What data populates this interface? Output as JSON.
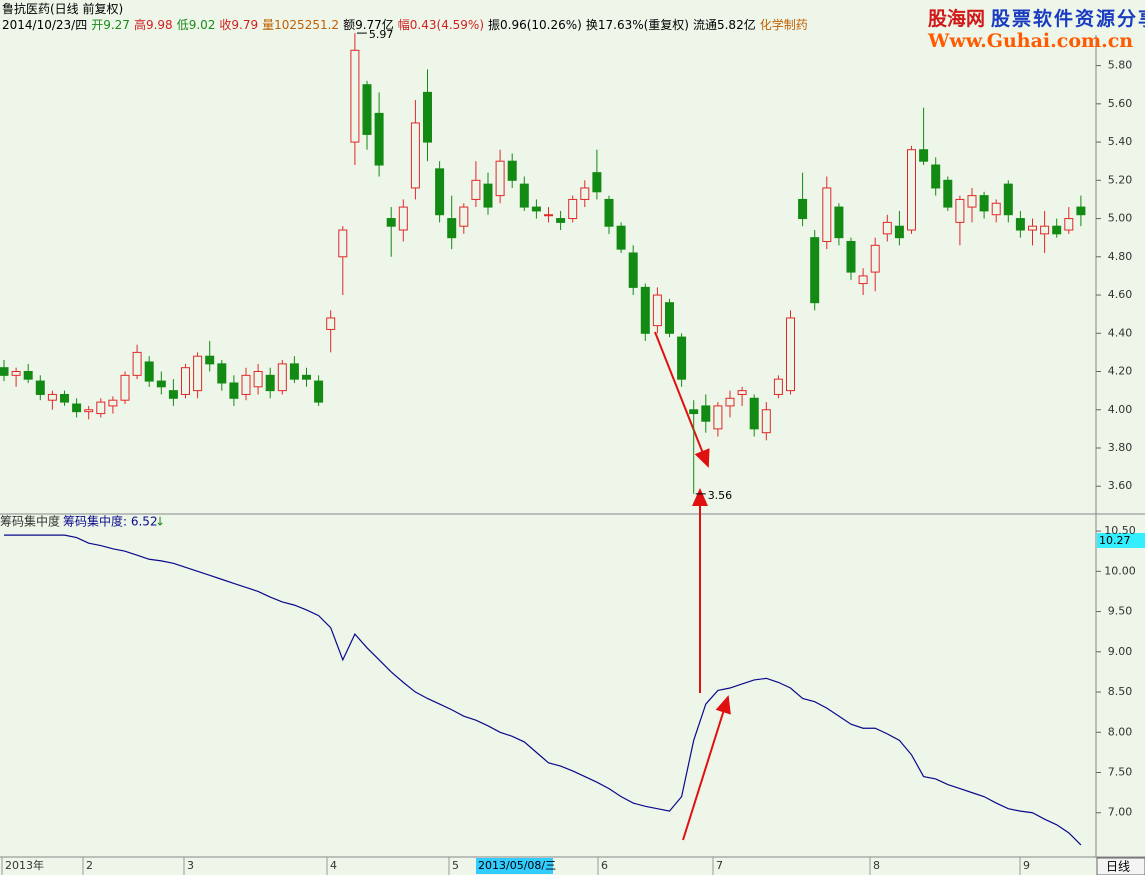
{
  "header": {
    "title": "鲁抗医药(日线 前复权)",
    "date": "2014/10/23/四",
    "open": "开9.27",
    "high": "高9.98",
    "low": "低9.02",
    "close": "收9.79",
    "volume": "量1025251.2",
    "amount": "额9.77亿",
    "change": "幅0.43(4.59%)",
    "amplitude": "振0.96(10.26%)",
    "turnover": "换17.63%(重复权)",
    "float": "流通5.82亿",
    "sector": "化学制药"
  },
  "logo": {
    "name": "股海网",
    "slogan": "股票软件资源分享",
    "url": "Www.Guhai.com.cn"
  },
  "x_axis": {
    "labels": [
      "2013年",
      "2",
      "3",
      "4",
      "5",
      "6",
      "7",
      "8",
      "9"
    ],
    "cursor_label": "2013/05/08/三",
    "period": "日线"
  },
  "chart_data": [
    {
      "type": "candlestick",
      "up_color": "#e02828",
      "down_color": "#138a13",
      "ylim": [
        3.46,
        5.96
      ],
      "yticks": [
        {
          "value": 3.6,
          "label": "3.60"
        },
        {
          "value": 3.8,
          "label": "3.80"
        },
        {
          "value": 4.0,
          "label": "4.00"
        },
        {
          "value": 4.2,
          "label": "4.20"
        },
        {
          "value": 4.4,
          "label": "4.40"
        },
        {
          "value": 4.6,
          "label": "4.60"
        },
        {
          "value": 4.8,
          "label": "4.80"
        },
        {
          "value": 5.0,
          "label": "5.00"
        },
        {
          "value": 5.2,
          "label": "5.20"
        },
        {
          "value": 5.4,
          "label": "5.40"
        },
        {
          "value": 5.6,
          "label": "5.60"
        },
        {
          "value": 5.8,
          "label": "5.80"
        }
      ],
      "annotations": [
        "5.97",
        "3.56"
      ],
      "ohlc": [
        [
          4.22,
          4.26,
          4.15,
          4.18
        ],
        [
          4.18,
          4.22,
          4.12,
          4.2
        ],
        [
          4.2,
          4.24,
          4.14,
          4.16
        ],
        [
          4.15,
          4.18,
          4.05,
          4.08
        ],
        [
          4.05,
          4.1,
          4.0,
          4.08
        ],
        [
          4.08,
          4.1,
          4.02,
          4.04
        ],
        [
          4.03,
          4.06,
          3.96,
          3.99
        ],
        [
          3.99,
          4.02,
          3.95,
          4.0
        ],
        [
          3.98,
          4.06,
          3.96,
          4.04
        ],
        [
          4.02,
          4.07,
          3.98,
          4.05
        ],
        [
          4.05,
          4.2,
          4.03,
          4.18
        ],
        [
          4.18,
          4.34,
          4.16,
          4.3
        ],
        [
          4.25,
          4.28,
          4.12,
          4.15
        ],
        [
          4.15,
          4.2,
          4.08,
          4.12
        ],
        [
          4.1,
          4.16,
          4.02,
          4.06
        ],
        [
          4.08,
          4.24,
          4.06,
          4.22
        ],
        [
          4.1,
          4.3,
          4.06,
          4.28
        ],
        [
          4.28,
          4.36,
          4.2,
          4.24
        ],
        [
          4.24,
          4.26,
          4.1,
          4.14
        ],
        [
          4.14,
          4.18,
          4.02,
          4.06
        ],
        [
          4.08,
          4.22,
          4.05,
          4.18
        ],
        [
          4.12,
          4.24,
          4.08,
          4.2
        ],
        [
          4.18,
          4.22,
          4.06,
          4.1
        ],
        [
          4.1,
          4.26,
          4.08,
          4.24
        ],
        [
          4.24,
          4.28,
          4.14,
          4.16
        ],
        [
          4.18,
          4.22,
          4.12,
          4.16
        ],
        [
          4.15,
          4.18,
          4.02,
          4.04
        ],
        [
          4.42,
          4.52,
          4.3,
          4.48
        ],
        [
          4.8,
          4.96,
          4.6,
          4.94
        ],
        [
          5.4,
          5.97,
          5.28,
          5.88
        ],
        [
          5.7,
          5.72,
          5.36,
          5.44
        ],
        [
          5.55,
          5.66,
          5.22,
          5.28
        ],
        [
          5.0,
          5.06,
          4.8,
          4.96
        ],
        [
          4.94,
          5.1,
          4.88,
          5.06
        ],
        [
          5.16,
          5.62,
          5.1,
          5.5
        ],
        [
          5.66,
          5.78,
          5.3,
          5.4
        ],
        [
          5.26,
          5.3,
          4.98,
          5.02
        ],
        [
          5.0,
          5.12,
          4.84,
          4.9
        ],
        [
          4.96,
          5.08,
          4.92,
          5.06
        ],
        [
          5.1,
          5.3,
          5.06,
          5.2
        ],
        [
          5.18,
          5.24,
          5.02,
          5.06
        ],
        [
          5.12,
          5.36,
          5.08,
          5.3
        ],
        [
          5.3,
          5.34,
          5.16,
          5.2
        ],
        [
          5.18,
          5.22,
          5.04,
          5.06
        ],
        [
          5.06,
          5.1,
          5.0,
          5.04
        ],
        [
          5.02,
          5.06,
          4.98,
          5.02
        ],
        [
          5.0,
          5.04,
          4.94,
          4.98
        ],
        [
          5.0,
          5.12,
          4.98,
          5.1
        ],
        [
          5.1,
          5.2,
          5.06,
          5.16
        ],
        [
          5.24,
          5.36,
          5.1,
          5.14
        ],
        [
          5.1,
          5.12,
          4.92,
          4.96
        ],
        [
          4.96,
          4.98,
          4.82,
          4.84
        ],
        [
          4.82,
          4.86,
          4.6,
          4.64
        ],
        [
          4.64,
          4.66,
          4.36,
          4.4
        ],
        [
          4.44,
          4.64,
          4.4,
          4.6
        ],
        [
          4.56,
          4.58,
          4.38,
          4.4
        ],
        [
          4.38,
          4.4,
          4.12,
          4.16
        ],
        [
          4.0,
          4.05,
          3.56,
          3.98
        ],
        [
          4.02,
          4.08,
          3.88,
          3.94
        ],
        [
          3.9,
          4.04,
          3.86,
          4.02
        ],
        [
          4.02,
          4.1,
          3.96,
          4.06
        ],
        [
          4.08,
          4.12,
          4.02,
          4.1
        ],
        [
          4.06,
          4.08,
          3.86,
          3.9
        ],
        [
          3.88,
          4.04,
          3.84,
          4.0
        ],
        [
          4.08,
          4.18,
          4.06,
          4.16
        ],
        [
          4.1,
          4.52,
          4.08,
          4.48
        ],
        [
          5.1,
          5.24,
          4.96,
          5.0
        ],
        [
          4.9,
          4.94,
          4.52,
          4.56
        ],
        [
          4.88,
          5.22,
          4.84,
          5.16
        ],
        [
          5.06,
          5.08,
          4.86,
          4.9
        ],
        [
          4.88,
          4.9,
          4.68,
          4.72
        ],
        [
          4.66,
          4.74,
          4.6,
          4.7
        ],
        [
          4.72,
          4.9,
          4.62,
          4.86
        ],
        [
          4.92,
          5.02,
          4.88,
          4.98
        ],
        [
          4.96,
          5.04,
          4.86,
          4.9
        ],
        [
          4.94,
          5.38,
          4.92,
          5.36
        ],
        [
          5.36,
          5.58,
          5.28,
          5.3
        ],
        [
          5.28,
          5.32,
          5.12,
          5.16
        ],
        [
          5.2,
          5.22,
          5.04,
          5.06
        ],
        [
          4.98,
          5.12,
          4.86,
          5.1
        ],
        [
          5.06,
          5.16,
          4.98,
          5.12
        ],
        [
          5.12,
          5.14,
          5.0,
          5.04
        ],
        [
          5.02,
          5.1,
          4.98,
          5.08
        ],
        [
          5.18,
          5.2,
          4.98,
          5.02
        ],
        [
          5.0,
          5.04,
          4.9,
          4.94
        ],
        [
          4.94,
          5.0,
          4.86,
          4.96
        ],
        [
          4.92,
          5.04,
          4.82,
          4.96
        ],
        [
          4.96,
          5.0,
          4.9,
          4.92
        ],
        [
          4.94,
          5.06,
          4.92,
          5.0
        ],
        [
          5.06,
          5.12,
          4.96,
          5.02
        ]
      ]
    },
    {
      "type": "line",
      "title": "筹码集中度",
      "legend": "筹码集中度: 6.52",
      "trend": "↓",
      "current_label": "10.27",
      "color": "#0a0a8a",
      "ylim": [
        6.45,
        10.7
      ],
      "yticks": [
        {
          "value": 7.0,
          "label": "7.00"
        },
        {
          "value": 7.5,
          "label": "7.50"
        },
        {
          "value": 8.0,
          "label": "8.00"
        },
        {
          "value": 8.5,
          "label": "8.50"
        },
        {
          "value": 9.0,
          "label": "9.00"
        },
        {
          "value": 9.5,
          "label": "9.50"
        },
        {
          "value": 10.0,
          "label": "10.00"
        },
        {
          "value": 10.5,
          "label": "10.50"
        }
      ],
      "values": [
        10.45,
        10.45,
        10.45,
        10.45,
        10.45,
        10.45,
        10.42,
        10.35,
        10.32,
        10.28,
        10.25,
        10.2,
        10.15,
        10.13,
        10.1,
        10.05,
        10.0,
        9.95,
        9.9,
        9.85,
        9.8,
        9.75,
        9.68,
        9.62,
        9.58,
        9.52,
        9.45,
        9.3,
        8.9,
        9.22,
        9.05,
        8.9,
        8.75,
        8.62,
        8.5,
        8.42,
        8.35,
        8.28,
        8.2,
        8.15,
        8.08,
        8.0,
        7.95,
        7.88,
        7.75,
        7.62,
        7.58,
        7.52,
        7.45,
        7.38,
        7.3,
        7.2,
        7.12,
        7.08,
        7.05,
        7.02,
        7.2,
        7.9,
        8.35,
        8.52,
        8.55,
        8.6,
        8.65,
        8.67,
        8.62,
        8.55,
        8.42,
        8.38,
        8.3,
        8.2,
        8.1,
        8.05,
        8.05,
        7.98,
        7.9,
        7.72,
        7.45,
        7.42,
        7.35,
        7.3,
        7.25,
        7.2,
        7.12,
        7.05,
        7.02,
        7.0,
        6.92,
        6.85,
        6.75,
        6.6
      ]
    }
  ]
}
